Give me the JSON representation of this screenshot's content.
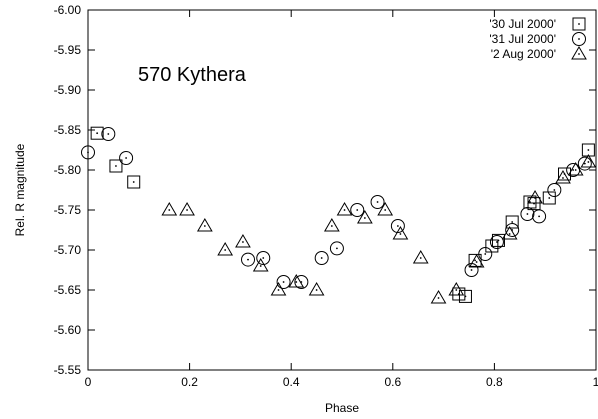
{
  "chart_data": {
    "type": "scatter",
    "title": "",
    "annotation": "570 Kythera",
    "xlabel": "Phase",
    "ylabel": "Rel. R magnitude",
    "xlim": [
      0,
      1
    ],
    "ylim": [
      -5.55,
      -6.0
    ],
    "grid": false,
    "legend_position": "top-right",
    "x_ticks": [
      {
        "value": 0,
        "label": "0"
      },
      {
        "value": 0.2,
        "label": "0.2"
      },
      {
        "value": 0.4,
        "label": "0.4"
      },
      {
        "value": 0.6,
        "label": "0.6"
      },
      {
        "value": 0.8,
        "label": "0.8"
      },
      {
        "value": 1,
        "label": "1"
      }
    ],
    "y_ticks": [
      {
        "value": -6.0,
        "label": "-6.00"
      },
      {
        "value": -5.95,
        "label": "-5.95"
      },
      {
        "value": -5.9,
        "label": "-5.90"
      },
      {
        "value": -5.85,
        "label": "-5.85"
      },
      {
        "value": -5.8,
        "label": "-5.80"
      },
      {
        "value": -5.75,
        "label": "-5.75"
      },
      {
        "value": -5.7,
        "label": "-5.70"
      },
      {
        "value": -5.65,
        "label": "-5.65"
      },
      {
        "value": -5.6,
        "label": "-5.60"
      },
      {
        "value": -5.55,
        "label": "-5.55"
      }
    ],
    "series": [
      {
        "name": "'30 Jul 2000'",
        "marker": "square",
        "x": [
          0.018,
          0.055,
          0.09,
          0.73,
          0.743,
          0.762,
          0.795,
          0.808,
          0.835,
          0.87,
          0.878,
          0.908,
          0.938,
          0.985
        ],
        "y": [
          -5.846,
          -5.805,
          -5.785,
          -5.645,
          -5.642,
          -5.687,
          -5.705,
          -5.712,
          -5.735,
          -5.76,
          -5.758,
          -5.765,
          -5.795,
          -5.825
        ]
      },
      {
        "name": "'31 Jul 2000'",
        "marker": "circle",
        "x": [
          0.0,
          0.04,
          0.075,
          0.315,
          0.345,
          0.385,
          0.42,
          0.46,
          0.49,
          0.53,
          0.57,
          0.61,
          0.755,
          0.782,
          0.805,
          0.835,
          0.865,
          0.888,
          0.918,
          0.955,
          0.978
        ],
        "y": [
          -5.822,
          -5.845,
          -5.815,
          -5.688,
          -5.69,
          -5.66,
          -5.66,
          -5.69,
          -5.702,
          -5.75,
          -5.76,
          -5.73,
          -5.675,
          -5.695,
          -5.71,
          -5.725,
          -5.745,
          -5.742,
          -5.775,
          -5.8,
          -5.808
        ]
      },
      {
        "name": "'2 Aug 2000'",
        "marker": "triangle",
        "x": [
          0.16,
          0.195,
          0.23,
          0.27,
          0.305,
          0.34,
          0.375,
          0.41,
          0.45,
          0.48,
          0.505,
          0.545,
          0.585,
          0.615,
          0.655,
          0.69,
          0.725,
          0.765,
          0.83,
          0.88,
          0.935,
          0.96,
          0.985
        ],
        "y": [
          -5.75,
          -5.75,
          -5.73,
          -5.7,
          -5.71,
          -5.68,
          -5.65,
          -5.66,
          -5.65,
          -5.73,
          -5.75,
          -5.74,
          -5.75,
          -5.72,
          -5.69,
          -5.64,
          -5.65,
          -5.685,
          -5.72,
          -5.765,
          -5.79,
          -5.8,
          -5.81
        ]
      }
    ]
  }
}
